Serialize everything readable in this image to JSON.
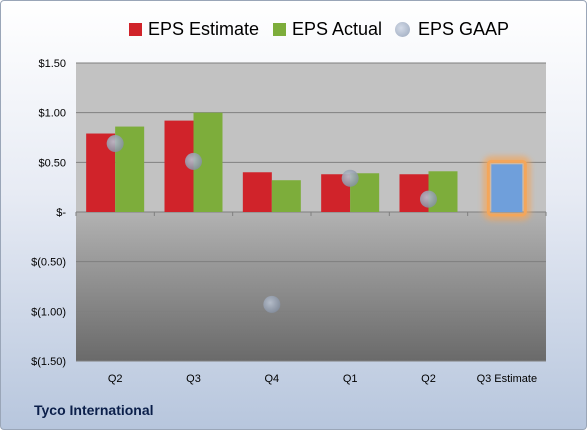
{
  "chart_data": {
    "type": "bar",
    "categories": [
      "Q2",
      "Q3",
      "Q4",
      "Q1",
      "Q2",
      "Q3 Estimate"
    ],
    "series": [
      {
        "name": "EPS Estimate",
        "type": "bar",
        "color": "#d0232a",
        "values": [
          0.79,
          0.92,
          0.4,
          0.38,
          0.38,
          null
        ]
      },
      {
        "name": "EPS Actual",
        "type": "bar",
        "color": "#7dad3b",
        "values": [
          0.86,
          1.0,
          0.32,
          0.39,
          0.41,
          null
        ]
      },
      {
        "name": "EPS GAAP",
        "type": "scatter",
        "color": "#a3aebf",
        "values": [
          0.69,
          0.51,
          -0.93,
          0.34,
          0.13,
          null
        ]
      },
      {
        "name": "",
        "type": "bar",
        "color": "#6f9fdb",
        "highlight": "#f4a65a",
        "values": [
          null,
          null,
          null,
          null,
          null,
          0.48
        ]
      }
    ],
    "y_ticks": [
      "$1.50",
      "$1.00",
      "$0.50",
      "$-",
      "$(0.50)",
      "$(1.00)",
      "$(1.50)"
    ],
    "ylim": [
      -1.5,
      1.5
    ],
    "grid": true,
    "legend_position": "top"
  },
  "footer": {
    "company": "Tyco International"
  },
  "legend": [
    "EPS Estimate",
    "EPS Actual",
    "EPS GAAP"
  ]
}
